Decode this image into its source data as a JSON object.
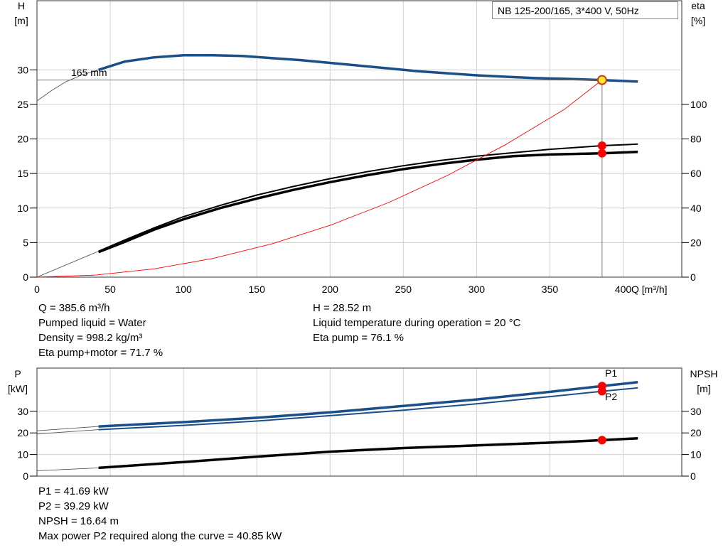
{
  "title": "NB 125-200/165, 3*400 V, 50Hz",
  "info_top_left": [
    "Q = 385.6 m³/h",
    "Pumped liquid = Water",
    "Density = 998.2 kg/m³",
    "Eta pump+motor = 71.7 %"
  ],
  "info_top_right": [
    "H = 28.52 m",
    "Liquid temperature during operation = 20 °C",
    "Eta pump = 76.1 %"
  ],
  "info_bottom": [
    "P1 = 41.69 kW",
    "P2 = 39.29 kW",
    "NPSH = 16.64 m",
    "Max power P2 required along the curve = 40.85 kW"
  ],
  "chart_data": [
    {
      "type": "line",
      "name": "head-efficiency",
      "xlabel": "Q [m³/h]",
      "ylabel": "H",
      "ylabel_unit": "[m]",
      "y2label": "eta",
      "y2label_unit": "[%]",
      "xlim": [
        0,
        440
      ],
      "ylim": [
        0,
        40
      ],
      "y2lim": [
        0,
        160
      ],
      "xticks": [
        0,
        50,
        100,
        150,
        200,
        250,
        300,
        350,
        400
      ],
      "yticks": [
        0,
        5,
        10,
        15,
        20,
        25,
        30
      ],
      "y2ticks": [
        0,
        20,
        40,
        60,
        80,
        100
      ],
      "grid": true,
      "annotation": "165 mm",
      "duty_point": {
        "Q": 385.6,
        "H": 28.52
      },
      "series": [
        {
          "role": "head",
          "axis": "left",
          "color": "#1a4f8a",
          "x": [
            42,
            60,
            80,
            100,
            120,
            140,
            160,
            180,
            200,
            220,
            240,
            260,
            280,
            300,
            320,
            340,
            360,
            385.6,
            410
          ],
          "y": [
            30.0,
            31.2,
            31.8,
            32.1,
            32.1,
            32.0,
            31.7,
            31.4,
            31.0,
            30.6,
            30.2,
            29.8,
            29.5,
            29.2,
            29.0,
            28.8,
            28.7,
            28.52,
            28.3
          ]
        },
        {
          "role": "head-extension",
          "axis": "left",
          "color": "#555555",
          "x": [
            0,
            10,
            20,
            30,
            42
          ],
          "y": [
            25.5,
            27.0,
            28.3,
            29.2,
            30.0
          ]
        },
        {
          "role": "efficiency-pump",
          "axis": "right",
          "color": "#000000",
          "x": [
            42,
            60,
            80,
            100,
            125,
            150,
            175,
            200,
            225,
            250,
            275,
            300,
            325,
            350,
            385.6,
            410
          ],
          "y": [
            15.0,
            21.5,
            28.5,
            35.0,
            41.5,
            47.5,
            52.5,
            57.0,
            61.0,
            64.5,
            67.5,
            70.0,
            72.0,
            74.0,
            76.1,
            77.0
          ]
        },
        {
          "role": "efficiency-pump-motor",
          "axis": "right",
          "color": "#000000",
          "x": [
            42,
            60,
            80,
            100,
            125,
            150,
            175,
            200,
            225,
            250,
            275,
            300,
            325,
            350,
            385.6,
            410
          ],
          "y": [
            14.5,
            20.5,
            27.5,
            33.5,
            40.0,
            45.5,
            50.5,
            55.0,
            59.0,
            62.5,
            65.5,
            68.0,
            70.0,
            71.0,
            71.7,
            72.5
          ]
        },
        {
          "role": "efficiency-extension",
          "axis": "right",
          "color": "#555555",
          "x": [
            0,
            42
          ],
          "y": [
            0,
            15.0
          ]
        },
        {
          "role": "system-curve",
          "axis": "left",
          "color": "#ff0000",
          "x": [
            0,
            40,
            80,
            120,
            160,
            200,
            240,
            280,
            320,
            360,
            385.6
          ],
          "y": [
            0,
            0.3,
            1.2,
            2.7,
            4.8,
            7.5,
            10.8,
            14.7,
            19.2,
            24.3,
            28.52
          ]
        }
      ],
      "markers": [
        {
          "x": 385.6,
          "y": 28.52,
          "axis": "left",
          "style": "yellow"
        },
        {
          "x": 385.6,
          "y": 76.1,
          "axis": "right",
          "style": "red"
        },
        {
          "x": 385.6,
          "y": 71.7,
          "axis": "right",
          "style": "red"
        }
      ]
    },
    {
      "type": "line",
      "name": "power-npsh",
      "ylabel": "P",
      "ylabel_unit": "[kW]",
      "y2label": "NPSH",
      "y2label_unit": "[m]",
      "xlim": [
        0,
        440
      ],
      "ylim": [
        0,
        50
      ],
      "y2lim": [
        0,
        50
      ],
      "yticks": [
        0,
        10,
        20,
        30
      ],
      "y2ticks": [
        0,
        10,
        20,
        30
      ],
      "grid": true,
      "series": [
        {
          "name": "P1",
          "role": "p1",
          "axis": "left",
          "color": "#1a4f8a",
          "x": [
            42,
            100,
            150,
            200,
            250,
            300,
            350,
            385.6,
            410
          ],
          "y": [
            23.0,
            25.0,
            27.0,
            29.5,
            32.5,
            35.5,
            39.0,
            41.69,
            43.5
          ]
        },
        {
          "name": "P2",
          "role": "p2",
          "axis": "left",
          "color": "#1a4f8a",
          "x": [
            42,
            100,
            150,
            200,
            250,
            300,
            350,
            385.6,
            410
          ],
          "y": [
            21.5,
            23.5,
            25.5,
            28.0,
            30.5,
            33.5,
            36.8,
            39.29,
            40.85
          ]
        },
        {
          "role": "p1-extension",
          "axis": "left",
          "color": "#555555",
          "x": [
            0,
            42
          ],
          "y": [
            21.0,
            23.0
          ]
        },
        {
          "role": "p2-extension",
          "axis": "left",
          "color": "#555555",
          "x": [
            0,
            42
          ],
          "y": [
            19.5,
            21.5
          ]
        },
        {
          "role": "npsh",
          "axis": "right",
          "color": "#000000",
          "x": [
            42,
            100,
            150,
            200,
            250,
            300,
            350,
            385.6,
            410
          ],
          "y": [
            3.8,
            6.5,
            9.0,
            11.3,
            13.0,
            14.2,
            15.5,
            16.64,
            17.5
          ]
        },
        {
          "role": "npsh-extension",
          "axis": "right",
          "color": "#555555",
          "x": [
            0,
            42
          ],
          "y": [
            2.5,
            3.8
          ]
        }
      ],
      "markers": [
        {
          "x": 385.6,
          "y": 41.69,
          "axis": "left",
          "style": "red"
        },
        {
          "x": 385.6,
          "y": 39.29,
          "axis": "left",
          "style": "red"
        },
        {
          "x": 385.6,
          "y": 16.64,
          "axis": "right",
          "style": "red"
        }
      ]
    }
  ]
}
